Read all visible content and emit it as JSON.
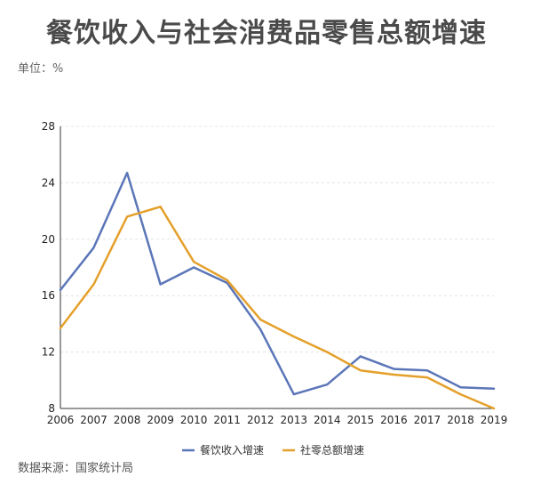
{
  "header": {
    "title": "餐饮收入与社会消费品零售总额增速",
    "unit": "单位：%"
  },
  "footer": {
    "source": "数据来源：国家统计局"
  },
  "colors": {
    "series1": "#5b76b8",
    "series2": "#e4a02a",
    "grid": "#e3e3e3",
    "axis": "#333333"
  },
  "chart_data": {
    "type": "line",
    "title": "餐饮收入与社会消费品零售总额增速",
    "xlabel": "",
    "ylabel": "",
    "x": [
      "2006",
      "2007",
      "2008",
      "2009",
      "2010",
      "2011",
      "2012",
      "2013",
      "2014",
      "2015",
      "2016",
      "2017",
      "2018",
      "2019"
    ],
    "ylim": [
      8,
      28
    ],
    "yticks": [
      8,
      12,
      16,
      20,
      24,
      28
    ],
    "grid": true,
    "legend_position": "bottom",
    "series": [
      {
        "name": "餐饮收入增速",
        "values": [
          16.4,
          19.4,
          24.7,
          16.8,
          18.0,
          16.9,
          13.6,
          9.0,
          9.7,
          11.7,
          10.8,
          10.7,
          9.5,
          9.4
        ]
      },
      {
        "name": "社零总额增速",
        "values": [
          13.7,
          16.8,
          21.6,
          22.3,
          18.4,
          17.1,
          14.3,
          13.1,
          12.0,
          10.7,
          10.4,
          10.2,
          9.0,
          8.0
        ]
      }
    ]
  }
}
